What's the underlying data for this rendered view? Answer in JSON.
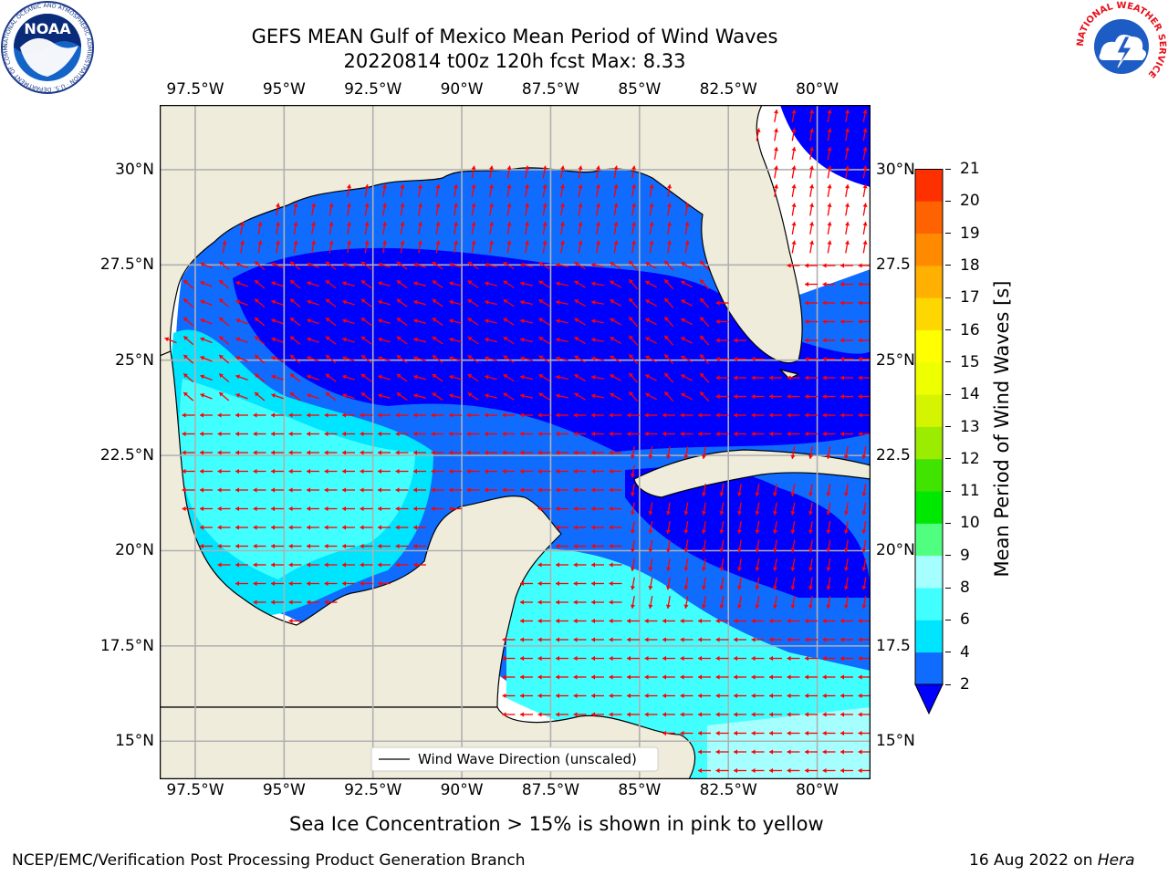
{
  "title": {
    "line1": "GEFS MEAN Gulf of Mexico Mean Period of Wind Waves",
    "line2": "20220814 t00z 120h fcst   Max: 8.33"
  },
  "map": {
    "region": "Gulf of Mexico",
    "lon_range": [
      -98.5,
      -78.5
    ],
    "lat_range": [
      14.0,
      31.7
    ],
    "lon_ticks": [
      "97.5°W",
      "95°W",
      "92.5°W",
      "90°W",
      "87.5°W",
      "85°W",
      "82.5°W",
      "80°W"
    ],
    "lon_tick_values": [
      -97.5,
      -95,
      -92.5,
      -90,
      -87.5,
      -85,
      -82.5,
      -80
    ],
    "lat_ticks": [
      "30°N",
      "27.5°N",
      "25°N",
      "22.5°N",
      "20°N",
      "17.5°N",
      "15°N"
    ],
    "lat_ticks_right": [
      "30°N",
      "27.5",
      "25°N",
      "22.5",
      "20°N",
      "17.5",
      "15°N"
    ],
    "lat_tick_values": [
      30,
      27.5,
      25,
      22.5,
      20,
      17.5,
      15
    ],
    "grid": true,
    "land_color": "#efecdc",
    "arrow_color": "#ff0000",
    "legend_label": "Wind Wave Direction (unscaled)"
  },
  "colorbar": {
    "label": "Mean Period of Wind Waves [s]",
    "levels": [
      2,
      4,
      6,
      8,
      9,
      10,
      11,
      12,
      13,
      14,
      15,
      16,
      17,
      18,
      19,
      20,
      21
    ],
    "colors": [
      "#0f6cff",
      "#00e5ff",
      "#42ffff",
      "#a6ffff",
      "#50ff80",
      "#00e800",
      "#40e400",
      "#9bec00",
      "#d4f400",
      "#eeff00",
      "#ffff00",
      "#ffd700",
      "#ffb000",
      "#ff8a00",
      "#ff6200",
      "#ff3000"
    ],
    "under_color": "#0000ff"
  },
  "fields": {
    "period_bands": {
      "lt2": "#0000ff",
      "2to4": "#0f6cff",
      "4to6": "#00e5ff",
      "6to8": "#42ffff",
      "8to9": "#a6ffff"
    }
  },
  "notes": {
    "sea_ice": "Sea Ice Concentration > 15% is shown in pink to yellow",
    "credit": "NCEP/EMC/Verification Post Processing Product Generation Branch",
    "date_prefix": "16 Aug 2022 on ",
    "host": "Hera"
  },
  "logos": {
    "noaa": {
      "text": "NOAA",
      "ring_text": "NATIONAL OCEANIC AND ATMOSPHERIC ADMINISTRATION · U.S. DEPARTMENT OF COMMERCE"
    },
    "nws": {
      "ring_text": "NATIONAL WEATHER SERVICE"
    }
  }
}
